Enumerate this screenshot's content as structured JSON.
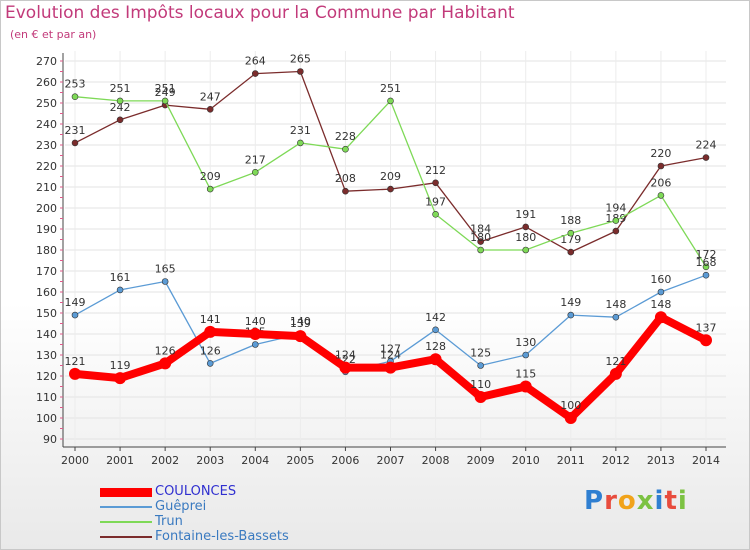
{
  "header": {
    "title": "Evolution des Impôts locaux pour la Commune par Habitant",
    "subtitle": "(en € et par an)"
  },
  "brand": {
    "logo_text": "Proxiti"
  },
  "chart_data": {
    "type": "line",
    "title": "Evolution des Impôts locaux pour la Commune par Habitant",
    "subtitle": "(en € et par an)",
    "x": [
      "2000",
      "2001",
      "2002",
      "2003",
      "2004",
      "2005",
      "2006",
      "2007",
      "2008",
      "2009",
      "2010",
      "2011",
      "2012",
      "2013",
      "2014"
    ],
    "ylim": [
      90,
      270
    ],
    "yticks": [
      90,
      100,
      110,
      120,
      130,
      140,
      150,
      160,
      170,
      180,
      190,
      200,
      210,
      220,
      230,
      240,
      250,
      260,
      270
    ],
    "grid": true,
    "legend_position": "bottom-left",
    "series": [
      {
        "name": "COULONCES",
        "color": "#ff0000",
        "values": [
          121,
          119,
          126,
          141,
          140,
          139,
          124,
          124,
          128,
          110,
          115,
          100,
          121,
          148,
          137
        ]
      },
      {
        "name": "Guêprei",
        "color": "#5b9bd5",
        "values": [
          149,
          161,
          165,
          126,
          135,
          140,
          122,
          127,
          142,
          125,
          130,
          149,
          148,
          160,
          168
        ]
      },
      {
        "name": "Trun",
        "color": "#7ed957",
        "values": [
          253,
          251,
          251,
          209,
          217,
          231,
          228,
          251,
          197,
          180,
          180,
          188,
          194,
          206,
          172
        ]
      },
      {
        "name": "Fontaine-les-Bassets",
        "color": "#7b2c2c",
        "values": [
          231,
          242,
          249,
          247,
          264,
          265,
          208,
          209,
          212,
          184,
          191,
          179,
          189,
          220,
          224
        ]
      }
    ]
  }
}
